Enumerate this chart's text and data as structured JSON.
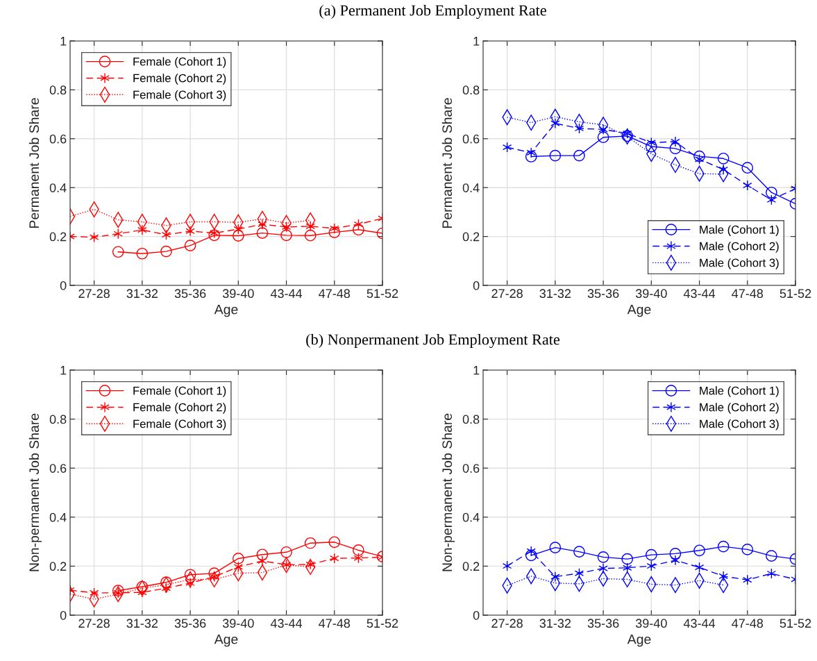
{
  "chart_data": [
    {
      "type": "line",
      "title": "(a) Permanent Job Employment Rate",
      "xlabel": "Age",
      "ylabel": "Permanent Job Share",
      "categories": [
        null,
        "27-28",
        null,
        "31-32",
        null,
        "35-36",
        null,
        "39-40",
        null,
        "43-44",
        null,
        "47-48",
        null,
        "51-52"
      ],
      "ylim": [
        0,
        1
      ],
      "yticks": [
        0,
        0.2,
        0.4,
        0.6,
        0.8,
        1
      ],
      "grid": true,
      "legend": "top left",
      "series": [
        {
          "name": "Female (Cohort 1)",
          "color": "#ff0000",
          "marker": "circle",
          "line_style": "solid",
          "values": [
            null,
            null,
            0.137,
            0.13,
            0.139,
            0.163,
            0.205,
            0.203,
            0.214,
            0.205,
            0.204,
            0.217,
            0.228,
            0.213
          ]
        },
        {
          "name": "Female (Cohort 2)",
          "color": "#ff0000",
          "marker": "cross",
          "line_style": "dashed",
          "values": [
            0.2,
            0.197,
            0.211,
            0.227,
            0.207,
            0.222,
            0.214,
            0.23,
            0.25,
            0.239,
            0.242,
            0.233,
            0.25,
            0.274
          ]
        },
        {
          "name": "Female (Cohort 3)",
          "color": "#ff0000",
          "marker": "diamond",
          "line_style": "dotted",
          "values": [
            0.282,
            0.311,
            0.268,
            0.26,
            0.245,
            0.26,
            0.26,
            0.258,
            0.272,
            0.255,
            0.266,
            null,
            null,
            null
          ]
        }
      ]
    },
    {
      "type": "line",
      "xlabel": "Age",
      "ylabel": "Permanent Job Share",
      "categories": [
        null,
        "27-28",
        null,
        "31-32",
        null,
        "35-36",
        null,
        "39-40",
        null,
        "43-44",
        null,
        "47-48",
        null,
        "51-52"
      ],
      "ylim": [
        0,
        1
      ],
      "yticks": [
        0,
        0.2,
        0.4,
        0.6,
        0.8,
        1
      ],
      "grid": true,
      "legend": "bottom right",
      "series": [
        {
          "name": "Male (Cohort 1)",
          "color": "#0000ff",
          "marker": "circle",
          "line_style": "solid",
          "values": [
            null,
            null,
            0.527,
            0.531,
            0.531,
            0.606,
            0.611,
            0.568,
            0.56,
            0.528,
            0.519,
            0.481,
            0.38,
            0.334
          ]
        },
        {
          "name": "Male (Cohort 2)",
          "color": "#0000ff",
          "marker": "cross",
          "line_style": "dashed",
          "values": [
            null,
            0.565,
            0.543,
            0.663,
            0.642,
            0.638,
            0.622,
            0.584,
            0.588,
            0.516,
            0.474,
            0.409,
            0.35,
            0.396
          ]
        },
        {
          "name": "Male (Cohort 3)",
          "color": "#0000ff",
          "marker": "diamond",
          "line_style": "dotted",
          "values": [
            null,
            0.688,
            0.666,
            0.69,
            0.669,
            0.657,
            0.609,
            0.538,
            0.493,
            0.457,
            0.455,
            null,
            null,
            null
          ]
        }
      ]
    },
    {
      "type": "line",
      "title": "(b) Nonpermanent Job Employment Rate",
      "xlabel": "Age",
      "ylabel": "Non-permanent Job Share",
      "categories": [
        null,
        "27-28",
        null,
        "31-32",
        null,
        "35-36",
        null,
        "39-40",
        null,
        "43-44",
        null,
        "47-48",
        null,
        "51-52"
      ],
      "ylim": [
        0,
        1
      ],
      "yticks": [
        0,
        0.2,
        0.4,
        0.6,
        0.8,
        1
      ],
      "grid": true,
      "legend": "top left",
      "series": [
        {
          "name": "Female (Cohort 1)",
          "color": "#ff0000",
          "marker": "circle",
          "line_style": "solid",
          "values": [
            null,
            null,
            0.1,
            0.116,
            0.134,
            0.165,
            0.171,
            0.231,
            0.247,
            0.257,
            0.294,
            0.298,
            0.265,
            0.239
          ]
        },
        {
          "name": "Female (Cohort 2)",
          "color": "#ff0000",
          "marker": "cross",
          "line_style": "dashed",
          "values": [
            0.102,
            0.091,
            0.091,
            0.093,
            0.11,
            0.131,
            0.157,
            0.197,
            0.221,
            0.206,
            0.207,
            0.232,
            0.233,
            0.237
          ]
        },
        {
          "name": "Female (Cohort 3)",
          "color": "#ff0000",
          "marker": "diamond",
          "line_style": "dotted",
          "values": [
            0.086,
            0.065,
            0.086,
            0.11,
            0.124,
            0.146,
            0.146,
            0.171,
            0.174,
            0.205,
            0.197,
            null,
            null,
            null
          ]
        }
      ]
    },
    {
      "type": "line",
      "xlabel": "Age",
      "ylabel": "Non-permanent Job Share",
      "categories": [
        null,
        "27-28",
        null,
        "31-32",
        null,
        "35-36",
        null,
        "39-40",
        null,
        "43-44",
        null,
        "47-48",
        null,
        "51-52"
      ],
      "ylim": [
        0,
        1
      ],
      "yticks": [
        0,
        0.2,
        0.4,
        0.6,
        0.8,
        1
      ],
      "grid": true,
      "legend": "top right",
      "series": [
        {
          "name": "Male (Cohort 1)",
          "color": "#0000ff",
          "marker": "circle",
          "line_style": "solid",
          "values": [
            null,
            null,
            0.244,
            0.276,
            0.259,
            0.237,
            0.229,
            0.246,
            0.251,
            0.264,
            0.28,
            0.268,
            0.242,
            0.229
          ]
        },
        {
          "name": "Male (Cohort 2)",
          "color": "#0000ff",
          "marker": "cross",
          "line_style": "dashed",
          "values": [
            null,
            0.201,
            0.261,
            0.157,
            0.171,
            0.191,
            0.193,
            0.201,
            0.224,
            0.195,
            0.159,
            0.144,
            0.17,
            0.146
          ]
        },
        {
          "name": "Male (Cohort 3)",
          "color": "#0000ff",
          "marker": "diamond",
          "line_style": "dotted",
          "values": [
            null,
            0.121,
            0.159,
            0.131,
            0.128,
            0.149,
            0.146,
            0.126,
            0.123,
            0.141,
            0.123,
            null,
            null,
            null
          ]
        }
      ]
    }
  ]
}
